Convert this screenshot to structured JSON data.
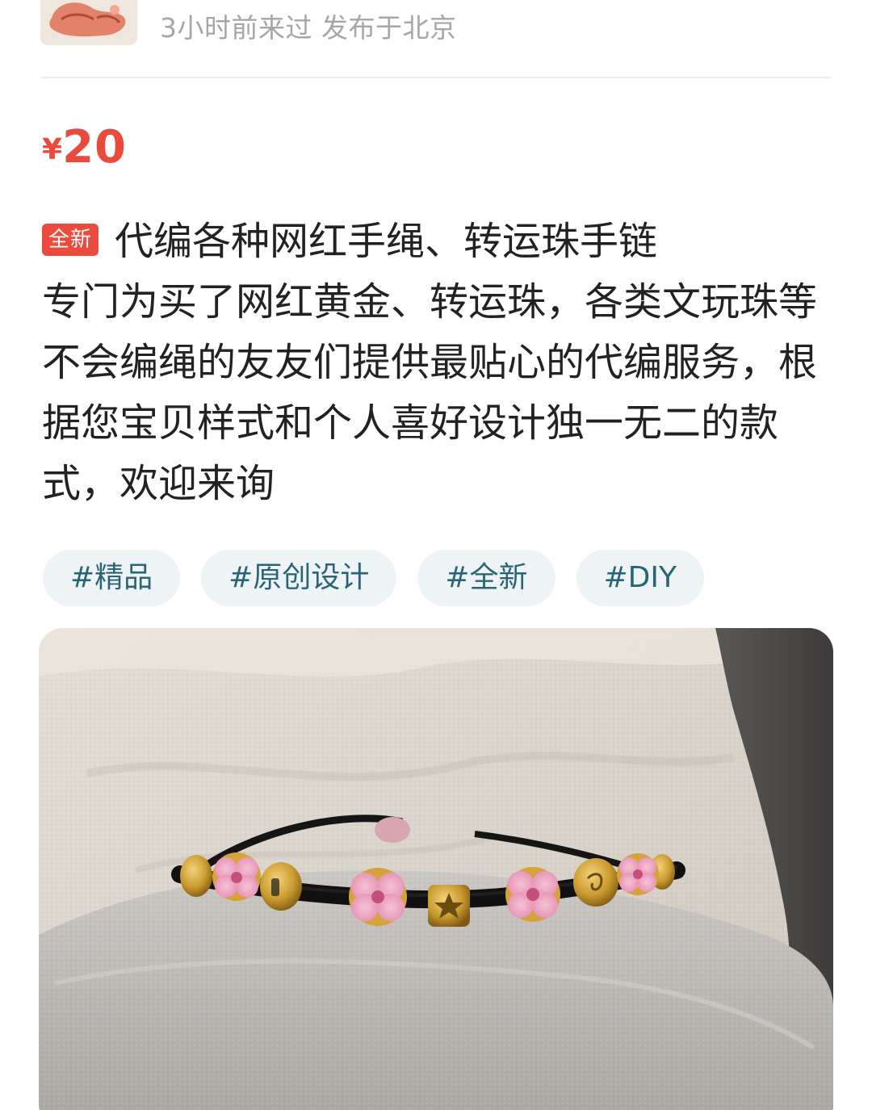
{
  "seller": {
    "avatar_icon": "avatar-thumbnail",
    "meta": "3小时前来过 发布于北京"
  },
  "price": {
    "currency": "¥",
    "amount": "20"
  },
  "listing": {
    "badge": "全新",
    "title": "代编各种网红手绳、转运珠手链",
    "body": "专门为买了网红黄金、转运珠，各类文玩珠等不会编绳的友友们提供最贴心的代编服务，根据您宝贝样式和个人喜好设计独一无二的款式，欢迎来询"
  },
  "tags": [
    "#精品",
    "#原创设计",
    "#全新",
    "#DIY"
  ],
  "photo": {
    "subject": "bracelet-photo"
  },
  "colors": {
    "price_red": "#e94a3b",
    "badge_red": "#ec4a3c",
    "tag_text": "#2b6475",
    "tag_bg": "#eef4f6",
    "meta_gray": "#a6a6a6"
  }
}
